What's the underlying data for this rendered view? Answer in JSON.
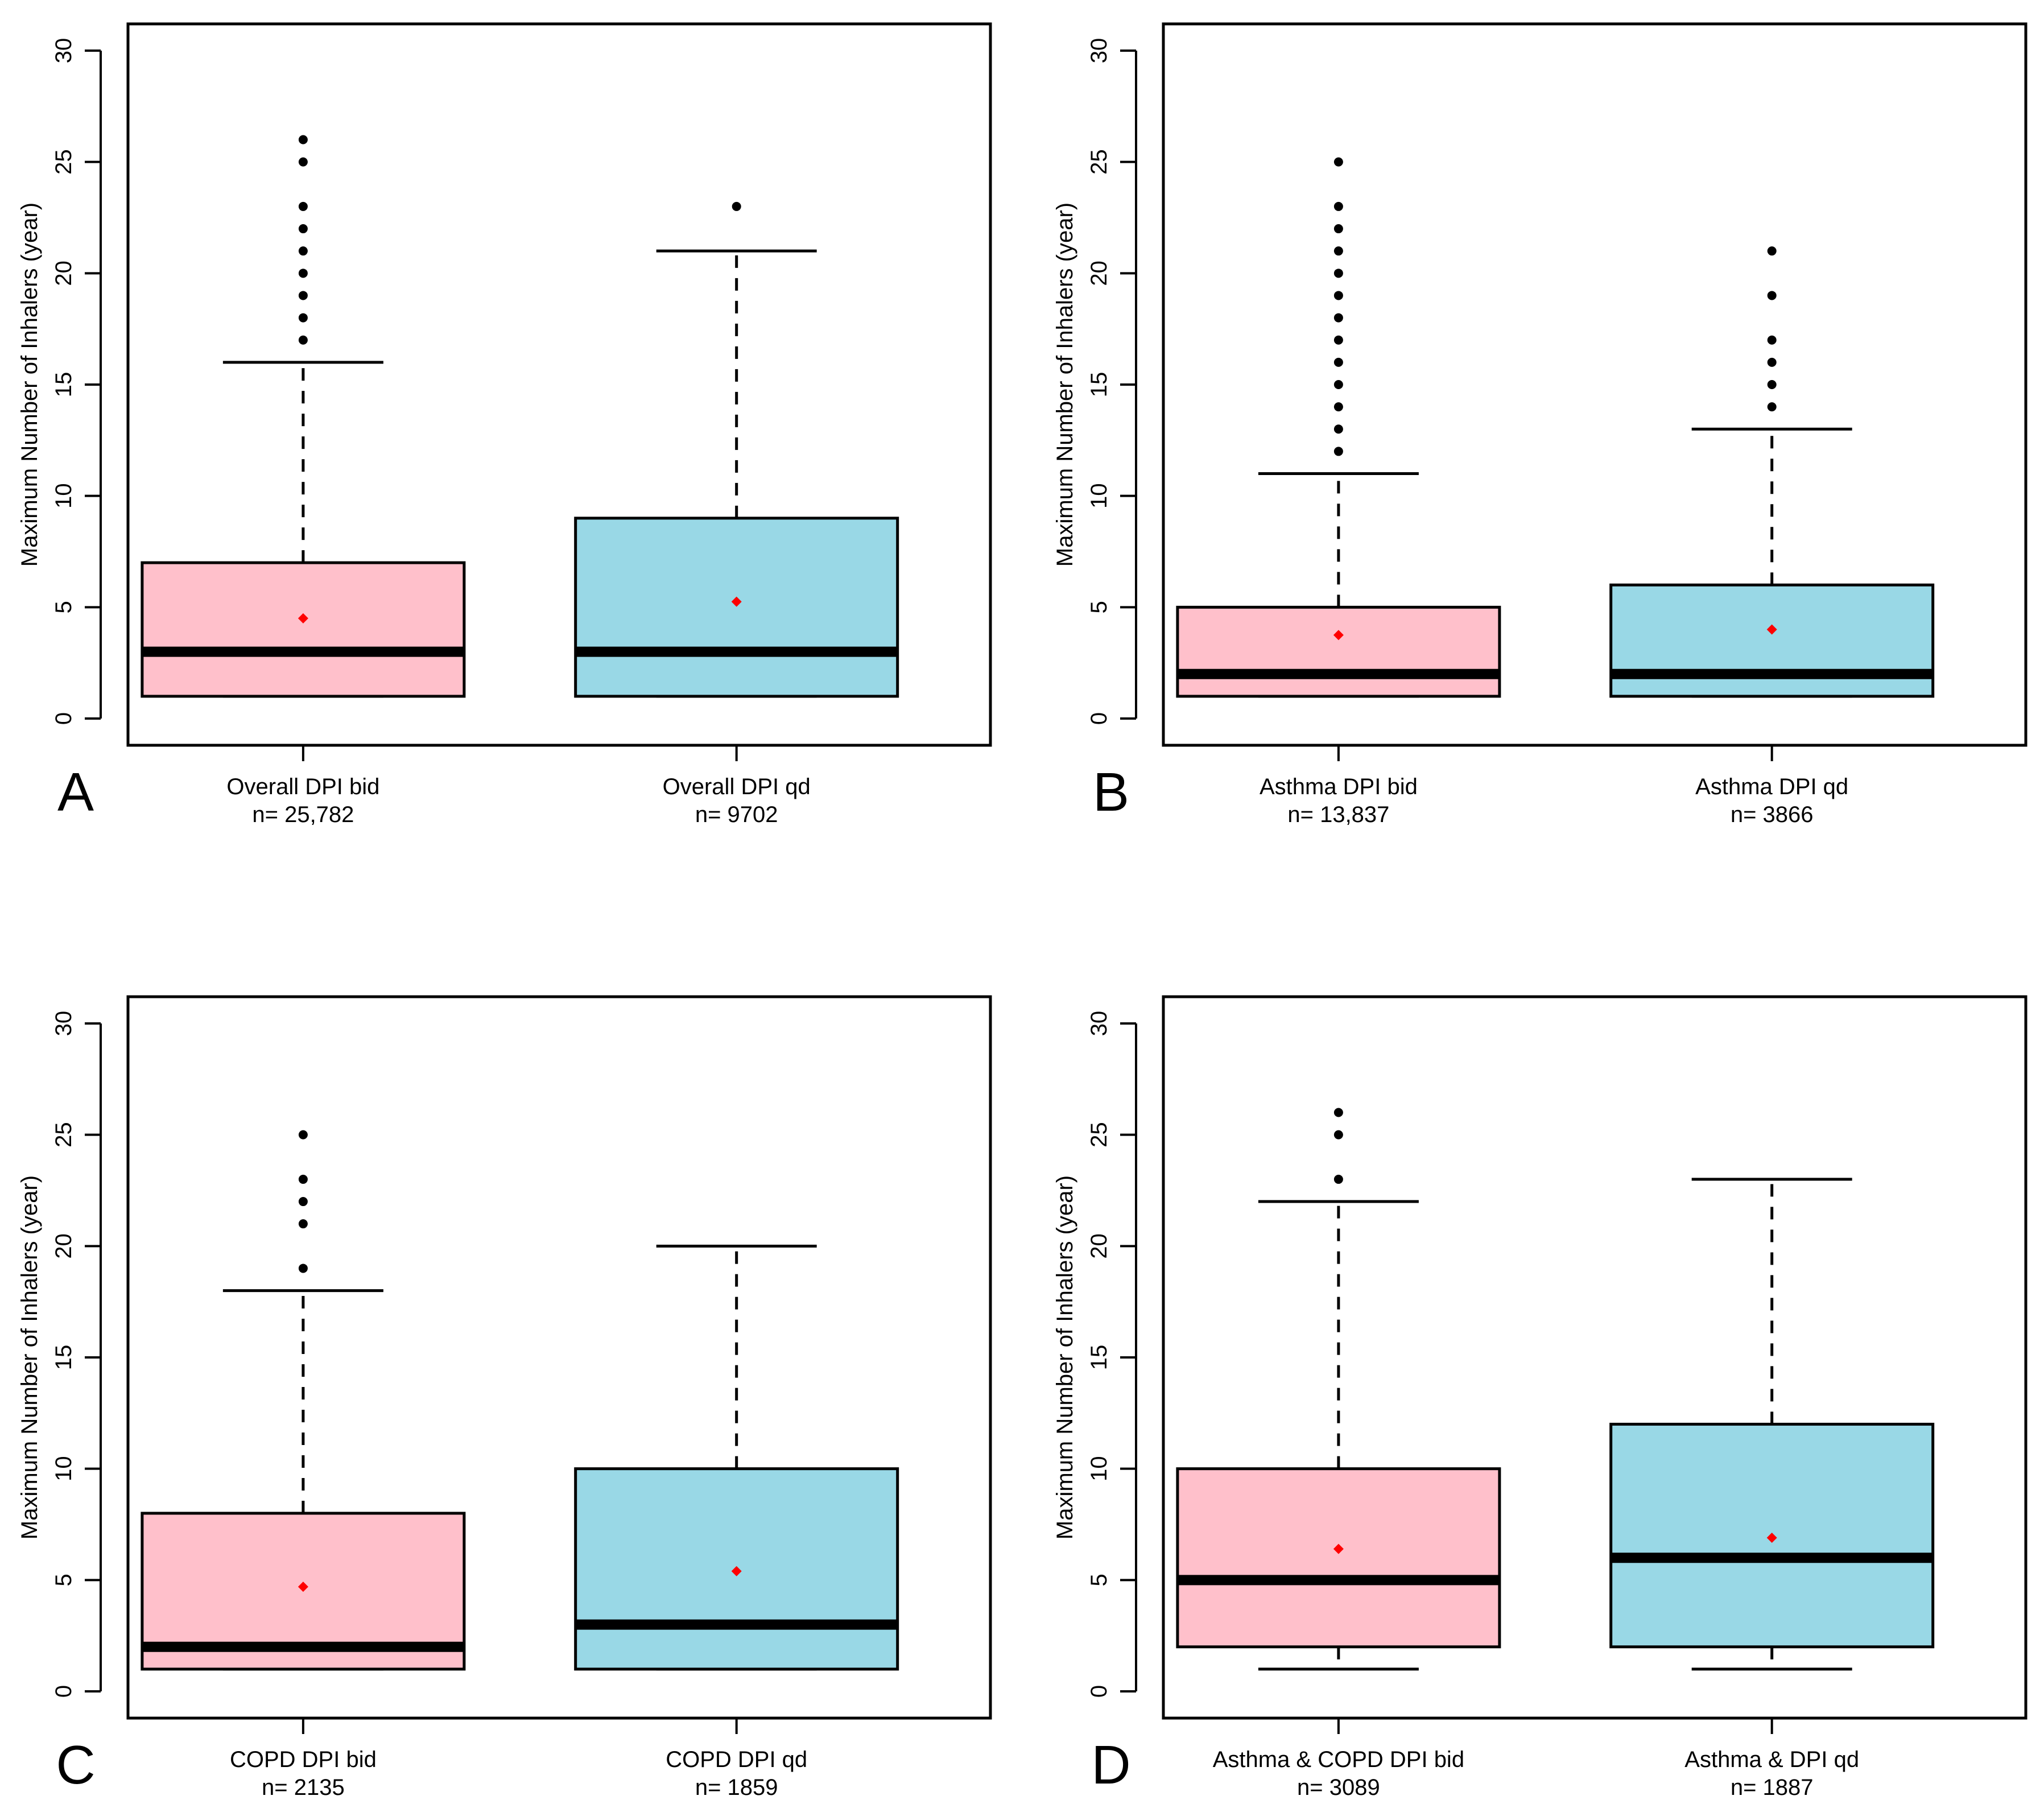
{
  "figure": {
    "colors": {
      "bid": "#FFC0CB",
      "qd": "#99D8E6",
      "mean": "#FF0000",
      "line": "#000000"
    }
  },
  "chart_data": [
    {
      "type": "boxplot",
      "panel_label": "A",
      "ylabel": "Maximum Number of Inhalers (year)",
      "ylim": [
        -1.2,
        31.2
      ],
      "yticks": [
        0,
        5,
        10,
        15,
        20,
        25,
        30
      ],
      "boxes": [
        {
          "name": "Overall DPI bid",
          "n_label": "n= 25,782",
          "color": "#FFC0CB",
          "q1": 1,
          "median": 3,
          "q3": 7,
          "whisker_low": 1,
          "whisker_high": 16,
          "mean": 4.5,
          "outliers": [
            17,
            18,
            19,
            20,
            21,
            22,
            23,
            25,
            26
          ]
        },
        {
          "name": "Overall DPI qd",
          "n_label": "n= 9702",
          "color": "#99D8E6",
          "q1": 1,
          "median": 3,
          "q3": 9,
          "whisker_low": 1,
          "whisker_high": 21,
          "mean": 5.25,
          "outliers": [
            23
          ]
        }
      ]
    },
    {
      "type": "boxplot",
      "panel_label": "B",
      "ylabel": "Maximum Number of Inhalers (year)",
      "ylim": [
        -1.2,
        31.2
      ],
      "yticks": [
        0,
        5,
        10,
        15,
        20,
        25,
        30
      ],
      "boxes": [
        {
          "name": "Asthma DPI bid",
          "n_label": "n= 13,837",
          "color": "#FFC0CB",
          "q1": 1,
          "median": 2,
          "q3": 5,
          "whisker_low": 1,
          "whisker_high": 11,
          "mean": 3.75,
          "outliers": [
            12,
            13,
            14,
            15,
            16,
            17,
            18,
            19,
            20,
            21,
            22,
            23,
            25
          ]
        },
        {
          "name": "Asthma DPI qd",
          "n_label": "n= 3866",
          "color": "#99D8E6",
          "q1": 1,
          "median": 2,
          "q3": 6,
          "whisker_low": 1,
          "whisker_high": 13,
          "mean": 4.0,
          "outliers": [
            14,
            15,
            16,
            17,
            19,
            21
          ]
        }
      ]
    },
    {
      "type": "boxplot",
      "panel_label": "C",
      "ylabel": "Maximum Number of Inhalers (year)",
      "ylim": [
        -1.2,
        31.2
      ],
      "yticks": [
        0,
        5,
        10,
        15,
        20,
        25,
        30
      ],
      "boxes": [
        {
          "name": "COPD DPI bid",
          "n_label": "n= 2135",
          "color": "#FFC0CB",
          "q1": 1,
          "median": 2,
          "q3": 8,
          "whisker_low": 1,
          "whisker_high": 18,
          "mean": 4.7,
          "outliers": [
            19,
            21,
            22,
            23,
            25
          ]
        },
        {
          "name": "COPD DPI qd",
          "n_label": "n= 1859",
          "color": "#99D8E6",
          "q1": 1,
          "median": 3,
          "q3": 10,
          "whisker_low": 1,
          "whisker_high": 20,
          "mean": 5.4,
          "outliers": []
        }
      ]
    },
    {
      "type": "boxplot",
      "panel_label": "D",
      "ylabel": "Maximum Number of Inhalers (year)",
      "ylim": [
        -1.2,
        31.2
      ],
      "yticks": [
        0,
        5,
        10,
        15,
        20,
        25,
        30
      ],
      "boxes": [
        {
          "name": "Asthma & COPD DPI bid",
          "n_label": "n= 3089",
          "color": "#FFC0CB",
          "q1": 2,
          "median": 5,
          "q3": 10,
          "whisker_low": 1,
          "whisker_high": 22,
          "mean": 6.4,
          "outliers": [
            23,
            25,
            26
          ]
        },
        {
          "name": "Asthma & DPI qd",
          "n_label": "n= 1887",
          "color": "#99D8E6",
          "q1": 2,
          "median": 6,
          "q3": 12,
          "whisker_low": 1,
          "whisker_high": 23,
          "mean": 6.9,
          "outliers": []
        }
      ]
    }
  ]
}
